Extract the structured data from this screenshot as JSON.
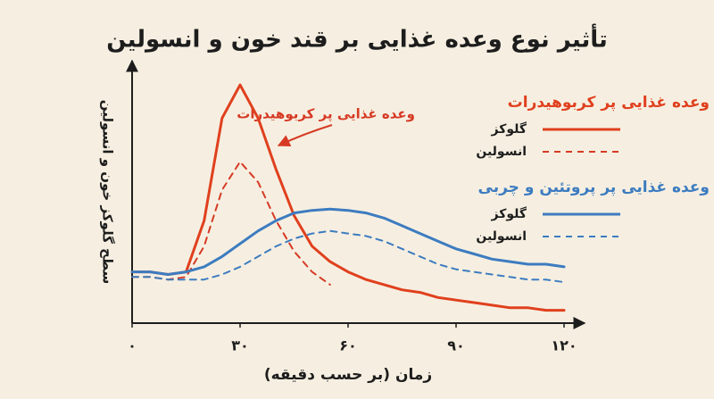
{
  "chart_data": {
    "type": "line",
    "title": "تأثیر نوع وعده غذایی بر قند خون و انسولین",
    "ylabel": "سطح گلوکز خون و انسولین",
    "xlabel": "زمان (بر حسب دقیقه)",
    "annotation": "وعده غذایی پر کربوهیدرات",
    "x": [
      0,
      5,
      10,
      15,
      20,
      25,
      30,
      35,
      40,
      45,
      50,
      55,
      60,
      65,
      70,
      75,
      80,
      85,
      90,
      95,
      100,
      105,
      110,
      115,
      120
    ],
    "xlim": [
      0,
      120
    ],
    "xticks": [
      {
        "value": 0,
        "label": "۰"
      },
      {
        "value": 30,
        "label": "۳۰"
      },
      {
        "value": 60,
        "label": "۶۰"
      },
      {
        "value": 90,
        "label": "۹۰"
      },
      {
        "value": 120,
        "label": "۱۲۰"
      }
    ],
    "ylim": [
      0,
      100
    ],
    "groups": [
      {
        "title": "وعده غذایی پر کربوهیدرات",
        "series": [
          {
            "name": "گلوکز",
            "color": "#e0401e",
            "dashed": false,
            "values": [
              20,
              20,
              19,
              20,
              40,
              80,
              93,
              80,
              60,
              42,
              30,
              24,
              20,
              17,
              15,
              13,
              12,
              10,
              9,
              8,
              7,
              6,
              6,
              5,
              5
            ]
          },
          {
            "name": "انسولین",
            "color": "#d63a24",
            "dashed": true,
            "values": [
              18,
              18,
              17,
              18,
              30,
              52,
              63,
              55,
              40,
              28,
              20,
              15,
              null,
              null,
              null,
              null,
              null,
              null,
              null,
              null,
              null,
              null,
              null,
              null,
              null
            ]
          }
        ]
      },
      {
        "title": "وعده غذایی پر پروتئین و چربی",
        "series": [
          {
            "name": "گلوکز",
            "color": "#3d7cc0",
            "dashed": false,
            "values": [
              20,
              20,
              19,
              20,
              22,
              26,
              31,
              36,
              40,
              43,
              44,
              44.5,
              44,
              43,
              41,
              38,
              35,
              32,
              29,
              27,
              25,
              24,
              23,
              23,
              22
            ]
          },
          {
            "name": "انسولین",
            "color": "#3d7cc0",
            "dashed": true,
            "values": [
              18,
              18,
              17,
              17,
              17,
              19,
              22,
              26,
              30,
              33,
              35,
              36,
              35,
              34,
              32,
              29,
              26,
              23,
              21,
              20,
              19,
              18,
              17,
              17,
              16
            ]
          }
        ]
      }
    ]
  }
}
